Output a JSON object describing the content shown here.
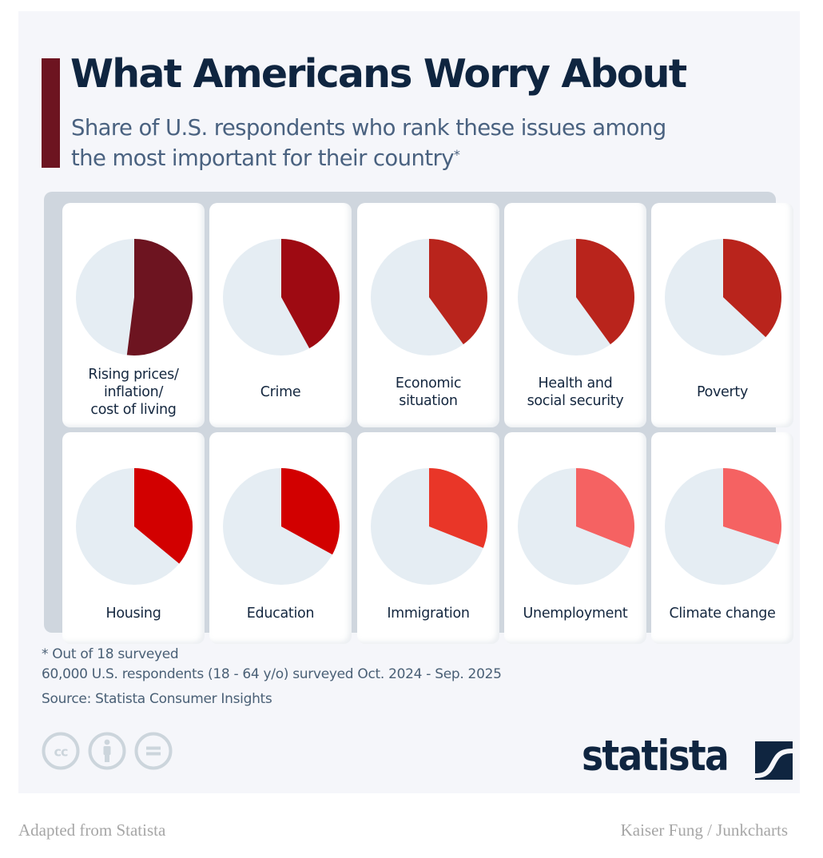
{
  "header": {
    "title": "What Americans Worry About",
    "subtitle": "Share of U.S. respondents who rank these issues among the most important for their country",
    "subtitle_mark": "*"
  },
  "colors": {
    "accent_bar": "#6d1420",
    "title": "#0f2540",
    "pie_background": "#e5edf3"
  },
  "chart_data": {
    "type": "pie",
    "title": "What Americans Worry About",
    "subtitle": "Share of U.S. respondents who rank these issues among the most important for their country*",
    "unit": "percent of respondents",
    "note": "Values estimated from slice angles; no data labels shown",
    "categories": [
      "Rising prices/ inflation/ cost of living",
      "Crime",
      "Economic situation",
      "Health and social security",
      "Poverty",
      "Housing",
      "Education",
      "Immigration",
      "Unemployment",
      "Climate change"
    ],
    "values": [
      52,
      42,
      40,
      40,
      37,
      36,
      33,
      31,
      31,
      30
    ],
    "slice_colors": [
      "#6d1420",
      "#9e0a12",
      "#b9241c",
      "#b9241c",
      "#b9241c",
      "#d20000",
      "#d20000",
      "#e93628",
      "#f56262",
      "#f56262"
    ],
    "remainder_color": "#e5edf3",
    "cards": [
      {
        "label_lines": [
          "Rising prices/",
          "inflation/",
          "cost of living"
        ],
        "value": 52,
        "color": "#6d1420"
      },
      {
        "label_lines": [
          "Crime"
        ],
        "value": 42,
        "color": "#9e0a12"
      },
      {
        "label_lines": [
          "Economic",
          "situation"
        ],
        "value": 40,
        "color": "#b9241c"
      },
      {
        "label_lines": [
          "Health and",
          "social security"
        ],
        "value": 40,
        "color": "#b9241c"
      },
      {
        "label_lines": [
          "Poverty"
        ],
        "value": 37,
        "color": "#b9241c"
      },
      {
        "label_lines": [
          "Housing"
        ],
        "value": 36,
        "color": "#d20000"
      },
      {
        "label_lines": [
          "Education"
        ],
        "value": 33,
        "color": "#d20000"
      },
      {
        "label_lines": [
          "Immigration"
        ],
        "value": 31,
        "color": "#e93628"
      },
      {
        "label_lines": [
          "Unemployment"
        ],
        "value": 31,
        "color": "#f56262"
      },
      {
        "label_lines": [
          "Climate change"
        ],
        "value": 30,
        "color": "#f56262"
      }
    ]
  },
  "footer": {
    "note_1": "* Out of 18 surveyed",
    "note_2": "60,000 U.S. respondents (18 - 64 y/o) surveyed Oct. 2024 - Sep. 2025",
    "source": "Source: Statista Consumer Insights",
    "license_icons": [
      "creative-commons-icon",
      "attribution-icon",
      "no-derivatives-icon"
    ],
    "logo_text": "statista"
  },
  "credits": {
    "left": "Adapted from Statista",
    "right": "Kaiser Fung / Junkcharts"
  }
}
